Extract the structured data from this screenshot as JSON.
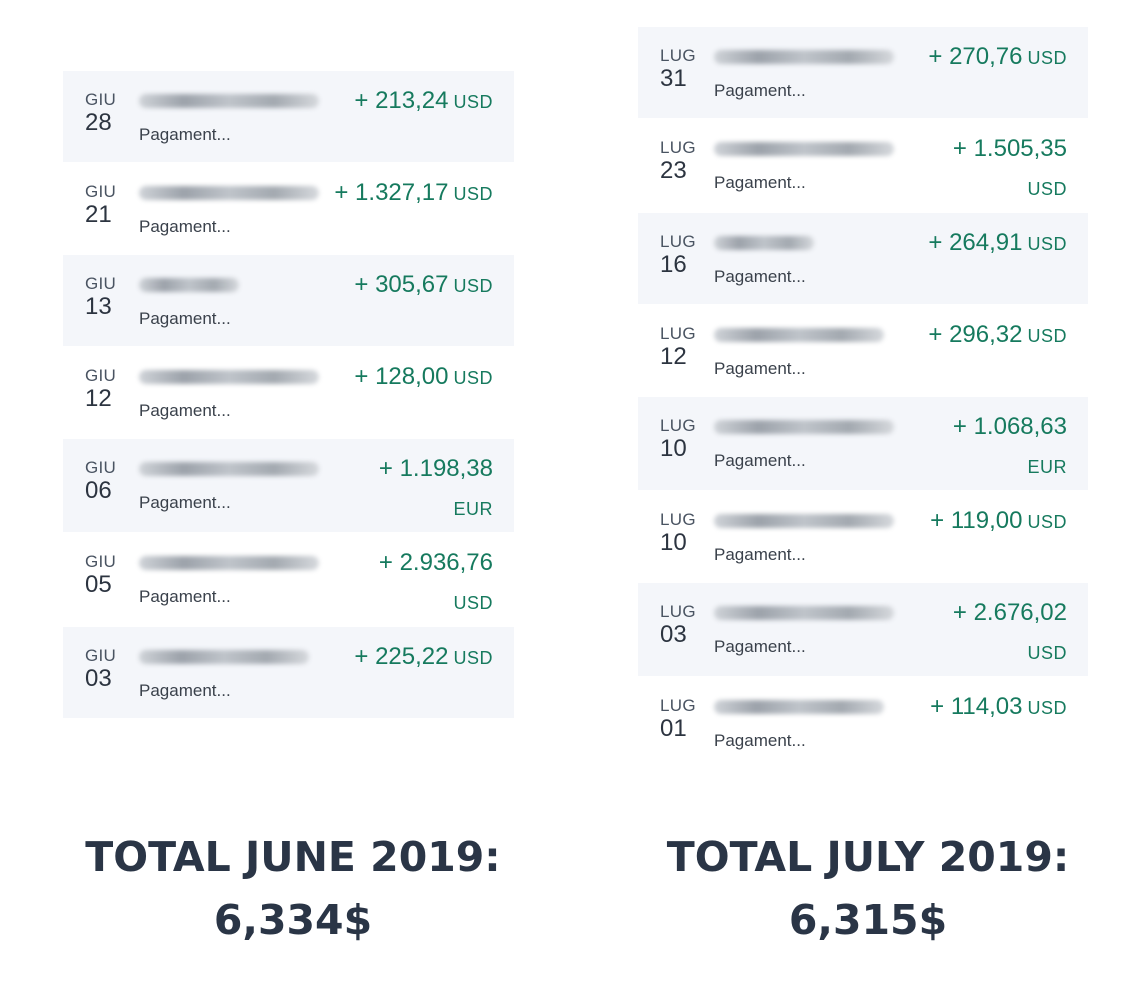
{
  "june": {
    "transactions": [
      {
        "month": "GIU",
        "day": "28",
        "desc": "Pagament...",
        "amount": "+ 213,24",
        "currency": "USD",
        "wrap": false
      },
      {
        "month": "GIU",
        "day": "21",
        "desc": "Pagament...",
        "amount": "+ 1.327,17",
        "currency": "USD",
        "wrap": false
      },
      {
        "month": "GIU",
        "day": "13",
        "desc": "Pagament...",
        "amount": "+ 305,67",
        "currency": "USD",
        "wrap": false
      },
      {
        "month": "GIU",
        "day": "12",
        "desc": "Pagament...",
        "amount": "+ 128,00",
        "currency": "USD",
        "wrap": false
      },
      {
        "month": "GIU",
        "day": "06",
        "desc": "Pagament...",
        "amount": "+ 1.198,38",
        "currency": "EUR",
        "wrap": true
      },
      {
        "month": "GIU",
        "day": "05",
        "desc": "Pagament...",
        "amount": "+ 2.936,76",
        "currency": "USD",
        "wrap": true
      },
      {
        "month": "GIU",
        "day": "03",
        "desc": "Pagament...",
        "amount": "+ 225,22",
        "currency": "USD",
        "wrap": false
      }
    ],
    "total_line1": "TOTAL JUNE 2019:",
    "total_line2": "6,334$"
  },
  "july": {
    "transactions": [
      {
        "month": "LUG",
        "day": "31",
        "desc": "Pagament...",
        "amount": "+ 270,76",
        "currency": "USD",
        "wrap": false
      },
      {
        "month": "LUG",
        "day": "23",
        "desc": "Pagament...",
        "amount": "+ 1.505,35",
        "currency": "USD",
        "wrap": true
      },
      {
        "month": "LUG",
        "day": "16",
        "desc": "Pagament...",
        "amount": "+ 264,91",
        "currency": "USD",
        "wrap": false
      },
      {
        "month": "LUG",
        "day": "12",
        "desc": "Pagament...",
        "amount": "+ 296,32",
        "currency": "USD",
        "wrap": false
      },
      {
        "month": "LUG",
        "day": "10",
        "desc": "Pagament...",
        "amount": "+ 1.068,63",
        "currency": "EUR",
        "wrap": true
      },
      {
        "month": "LUG",
        "day": "10",
        "desc": "Pagament...",
        "amount": "+ 119,00",
        "currency": "USD",
        "wrap": false
      },
      {
        "month": "LUG",
        "day": "03",
        "desc": "Pagament...",
        "amount": "+ 2.676,02",
        "currency": "USD",
        "wrap": true
      },
      {
        "month": "LUG",
        "day": "01",
        "desc": "Pagament...",
        "amount": "+ 114,03",
        "currency": "USD",
        "wrap": false
      }
    ],
    "total_line1": "TOTAL JULY 2019:",
    "total_line2": "6,315$"
  },
  "colors": {
    "amount": "#167a5e",
    "row_shade": "#f4f6fa",
    "total_text": "#2a3546"
  }
}
